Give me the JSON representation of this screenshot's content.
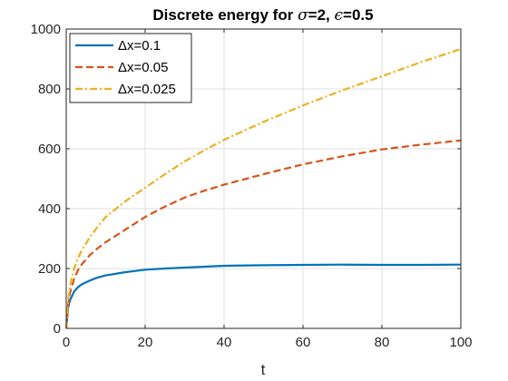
{
  "chart_data": {
    "type": "line",
    "title_prefix": "Discrete energy for ",
    "title_sigma_symbol": "σ",
    "title_sigma_value": "=2, ",
    "title_epsilon_symbol": "ϵ",
    "title_epsilon_value": "=0.5",
    "xlabel": "t",
    "ylabel": "",
    "xlim": [
      0,
      100
    ],
    "ylim": [
      0,
      1000
    ],
    "xticks": [
      0,
      20,
      40,
      60,
      80,
      100
    ],
    "yticks": [
      0,
      200,
      400,
      600,
      800,
      1000
    ],
    "grid": true,
    "legend_position": "top-left",
    "x": [
      0,
      0.5,
      1,
      2,
      3,
      4,
      6,
      8,
      10,
      15,
      20,
      25,
      30,
      35,
      40,
      50,
      60,
      70,
      80,
      90,
      100
    ],
    "series": [
      {
        "name": "Δx=0.1",
        "color": "#0072BD",
        "style": "solid",
        "values": [
          0,
          70,
          95,
          123,
          138,
          148,
          160,
          170,
          177,
          188,
          196,
          200,
          203,
          206,
          209,
          211,
          212,
          213,
          212,
          212,
          213
        ]
      },
      {
        "name": "Δx=0.05",
        "color": "#D95319",
        "style": "dashed",
        "values": [
          0,
          80,
          120,
          165,
          195,
          215,
          245,
          268,
          288,
          330,
          372,
          407,
          437,
          460,
          480,
          515,
          548,
          575,
          598,
          614,
          628
        ]
      },
      {
        "name": "Δx=0.025",
        "color": "#EDB120",
        "style": "dashdot",
        "values": [
          0,
          95,
          145,
          200,
          235,
          262,
          305,
          340,
          372,
          425,
          470,
          515,
          558,
          595,
          630,
          690,
          745,
          795,
          842,
          890,
          933
        ]
      }
    ]
  }
}
